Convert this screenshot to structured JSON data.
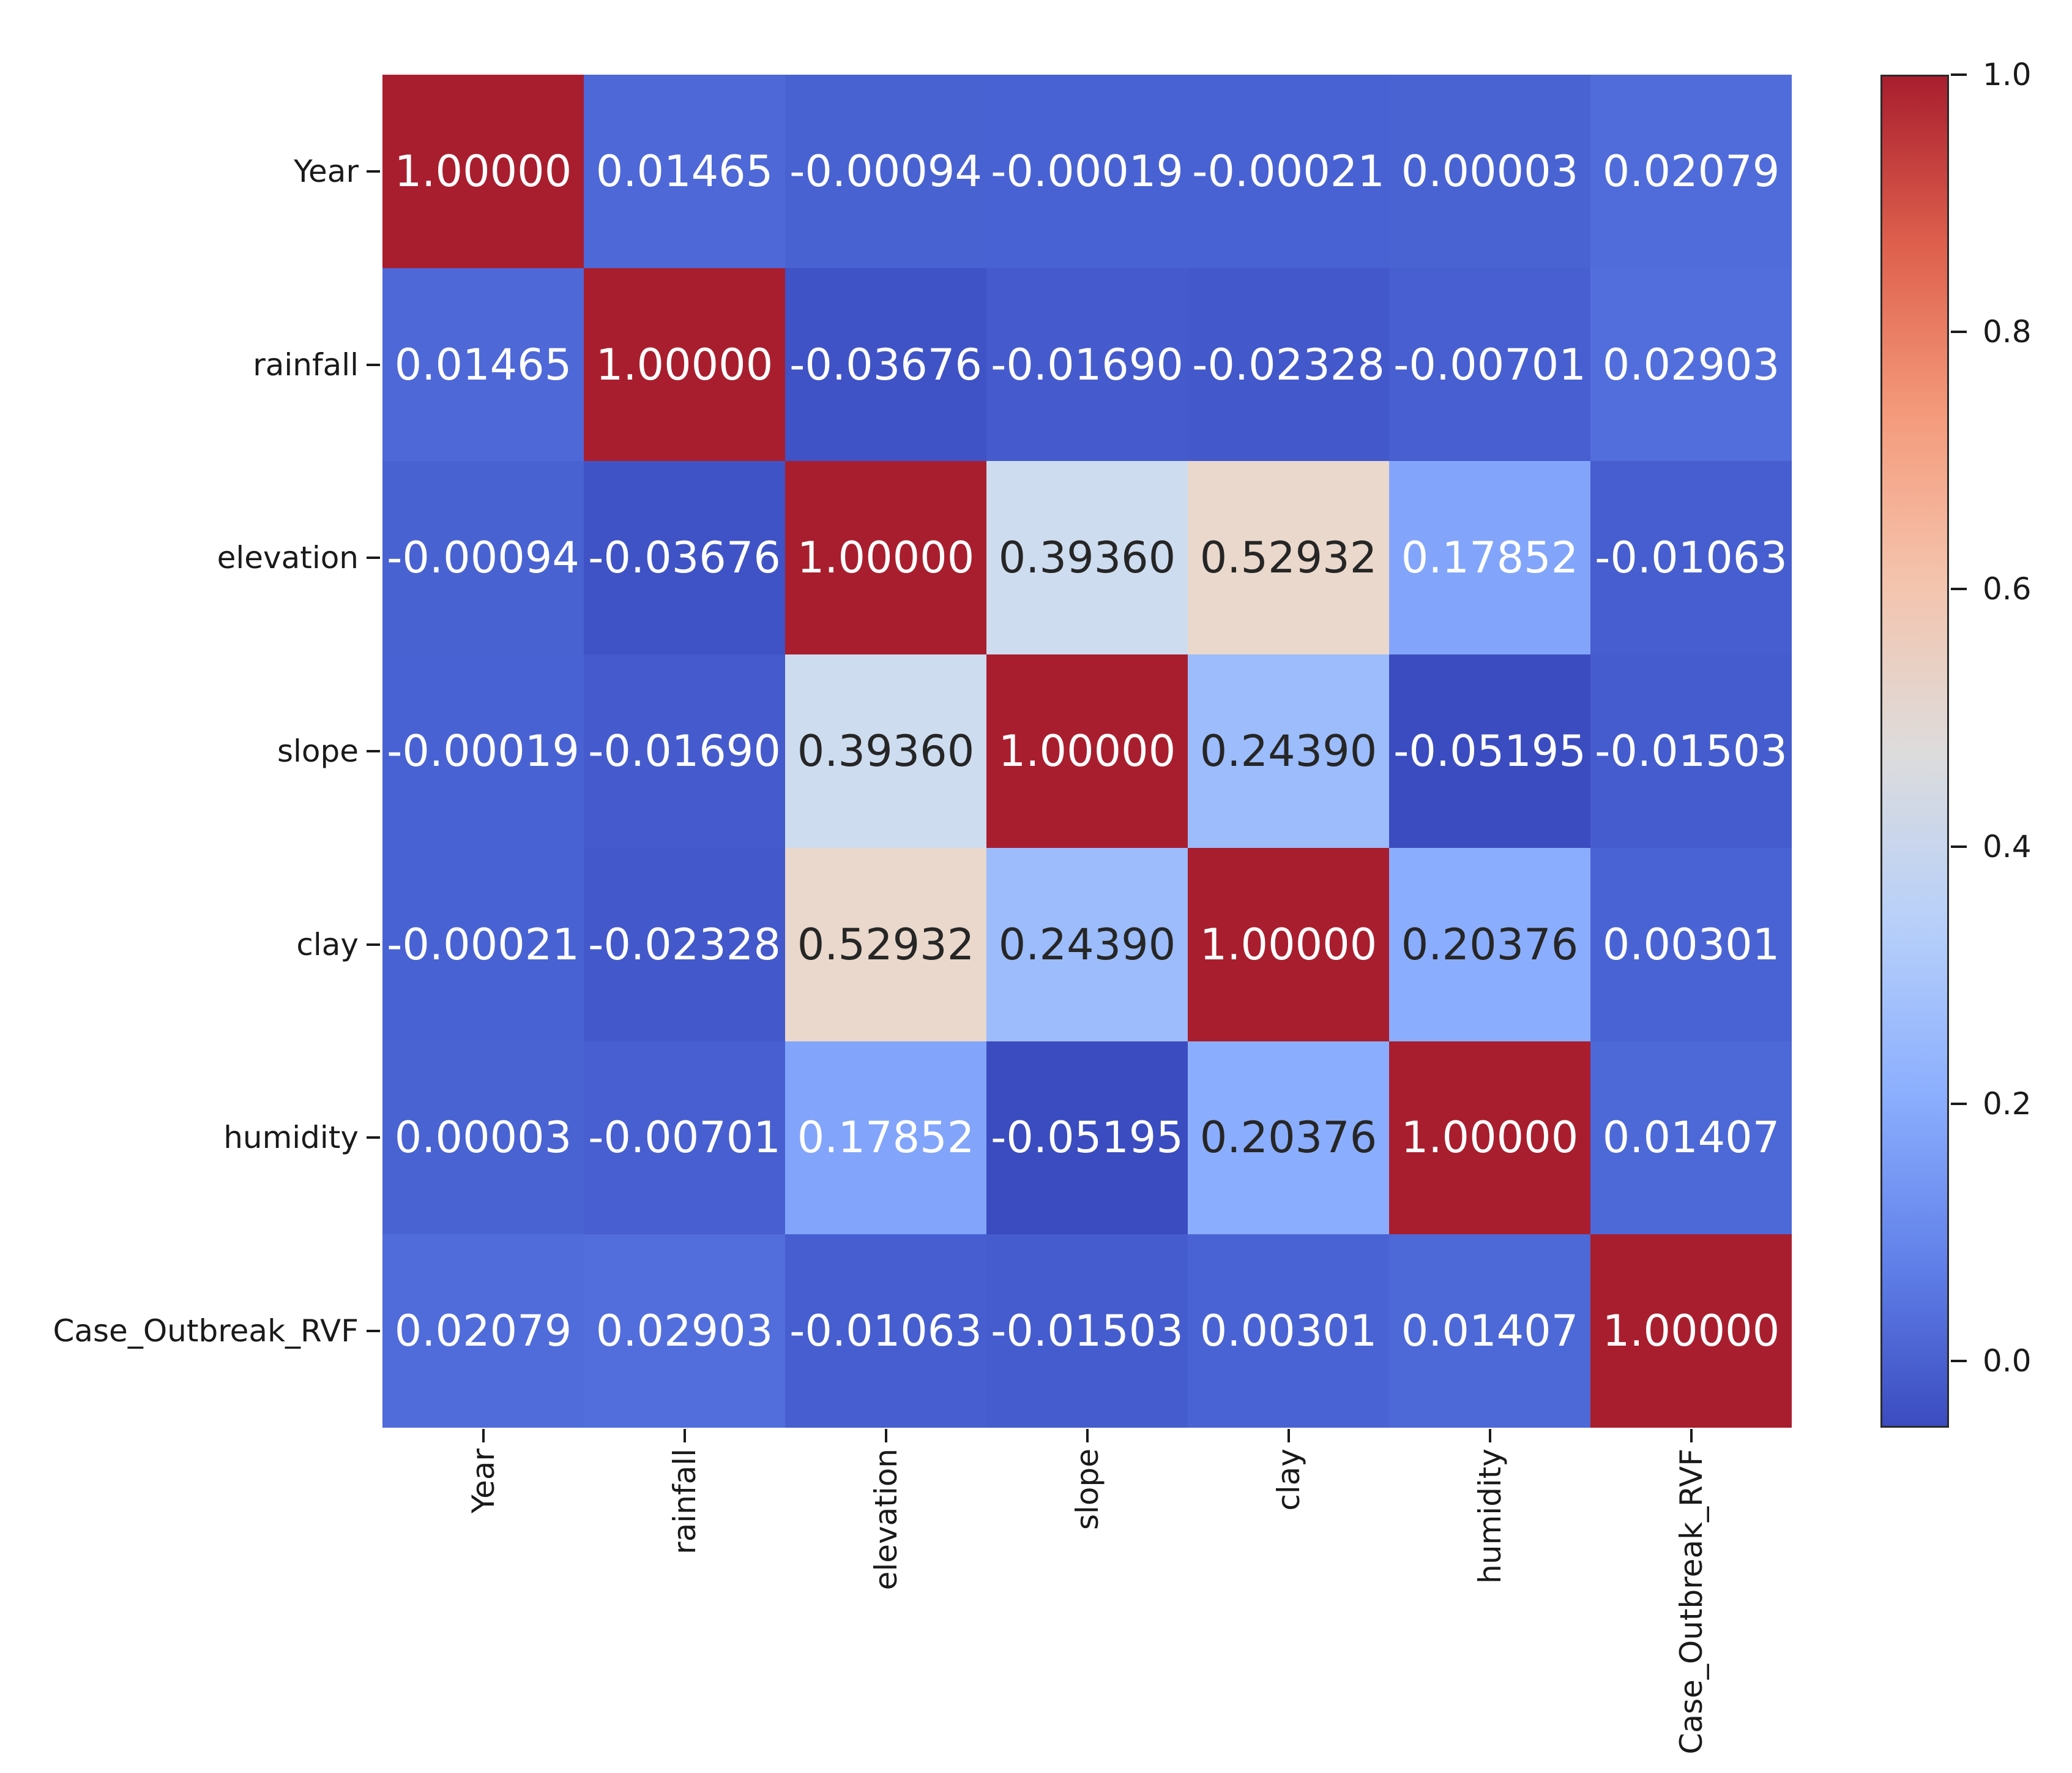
{
  "chart_data": {
    "type": "heatmap",
    "title": "",
    "xlabel": "",
    "ylabel": "",
    "labels": [
      "Year",
      "rainfall",
      "elevation",
      "slope",
      "clay",
      "humidity",
      "Case_Outbreak_RVF"
    ],
    "matrix": [
      [
        1.0,
        0.01465,
        -0.00094,
        -0.00019,
        -0.00021,
        3e-05,
        0.02079
      ],
      [
        0.01465,
        1.0,
        -0.03676,
        -0.0169,
        -0.02328,
        -0.00701,
        0.02903
      ],
      [
        -0.00094,
        -0.03676,
        1.0,
        0.3936,
        0.52932,
        0.17852,
        -0.01063
      ],
      [
        -0.00019,
        -0.0169,
        0.3936,
        1.0,
        0.2439,
        -0.05195,
        -0.01503
      ],
      [
        -0.00021,
        -0.02328,
        0.52932,
        0.2439,
        1.0,
        0.20376,
        0.00301
      ],
      [
        3e-05,
        -0.00701,
        0.17852,
        -0.05195,
        0.20376,
        1.0,
        0.01407
      ],
      [
        0.02079,
        0.02903,
        -0.01063,
        -0.01503,
        0.00301,
        0.01407,
        1.0
      ]
    ],
    "annotations": [
      [
        "1.00000",
        "0.01465",
        "-0.00094",
        "-0.00019",
        "-0.00021",
        "0.00003",
        "0.02079"
      ],
      [
        "0.01465",
        "1.00000",
        "-0.03676",
        "-0.01690",
        "-0.02328",
        "-0.00701",
        "0.02903"
      ],
      [
        "-0.00094",
        "-0.03676",
        "1.00000",
        "0.39360",
        "0.52932",
        "0.17852",
        "-0.01063"
      ],
      [
        "-0.00019",
        "-0.01690",
        "0.39360",
        "1.00000",
        "0.24390",
        "-0.05195",
        "-0.01503"
      ],
      [
        "-0.00021",
        "-0.02328",
        "0.52932",
        "0.24390",
        "1.00000",
        "0.20376",
        "0.00301"
      ],
      [
        "0.00003",
        "-0.00701",
        "0.17852",
        "-0.05195",
        "0.20376",
        "1.00000",
        "0.01407"
      ],
      [
        "0.02079",
        "0.02903",
        "-0.01063",
        "-0.01503",
        "0.00301",
        "0.01407",
        "1.00000"
      ]
    ],
    "cell_colors": [
      [
        "#A91E2E",
        "#4E68D8",
        "#4962D2",
        "#4962D3",
        "#4962D3",
        "#4963D3",
        "#506BDA"
      ],
      [
        "#4E68D8",
        "#A91E2E",
        "#3F53C6",
        "#455BCD",
        "#4358CB",
        "#475FD0",
        "#526EDC"
      ],
      [
        "#4962D2",
        "#3F53C6",
        "#A91E2E",
        "#CEDCF0",
        "#E9D8CB",
        "#82A5FB",
        "#465ECF"
      ],
      [
        "#4962D3",
        "#455BCD",
        "#CEDCF0",
        "#A91E2E",
        "#9CBCFC",
        "#3B4CC0",
        "#455CCE"
      ],
      [
        "#4962D3",
        "#4358CB",
        "#E9D8CB",
        "#9CBCFC",
        "#A91E2E",
        "#8BADFD",
        "#4A63D4"
      ],
      [
        "#4963D3",
        "#475FD0",
        "#82A5FB",
        "#3B4CC0",
        "#8BADFD",
        "#A91E2E",
        "#4D68D7"
      ],
      [
        "#506BDA",
        "#526EDC",
        "#465ECF",
        "#455CCE",
        "#4A63D4",
        "#4D68D7",
        "#A91E2E"
      ]
    ],
    "cell_text_colors": [
      [
        "#FFFFFF",
        "#FFFFFF",
        "#FFFFFF",
        "#FFFFFF",
        "#FFFFFF",
        "#FFFFFF",
        "#FFFFFF"
      ],
      [
        "#FFFFFF",
        "#FFFFFF",
        "#FFFFFF",
        "#FFFFFF",
        "#FFFFFF",
        "#FFFFFF",
        "#FFFFFF"
      ],
      [
        "#FFFFFF",
        "#FFFFFF",
        "#FFFFFF",
        "#262626",
        "#262626",
        "#FFFFFF",
        "#FFFFFF"
      ],
      [
        "#FFFFFF",
        "#FFFFFF",
        "#262626",
        "#FFFFFF",
        "#262626",
        "#FFFFFF",
        "#FFFFFF"
      ],
      [
        "#FFFFFF",
        "#FFFFFF",
        "#262626",
        "#262626",
        "#FFFFFF",
        "#262626",
        "#FFFFFF"
      ],
      [
        "#FFFFFF",
        "#FFFFFF",
        "#FFFFFF",
        "#FFFFFF",
        "#262626",
        "#FFFFFF",
        "#FFFFFF"
      ],
      [
        "#FFFFFF",
        "#FFFFFF",
        "#FFFFFF",
        "#FFFFFF",
        "#FFFFFF",
        "#FFFFFF",
        "#FFFFFF"
      ]
    ],
    "colormap": "coolwarm",
    "vmin": -0.05195,
    "vmax": 1.0,
    "colorbar_tick_labels": [
      "1.0",
      "0.8",
      "0.6",
      "0.4",
      "0.2",
      "0.0"
    ],
    "colorbar_tick_values": [
      1.0,
      0.8,
      0.6,
      0.4,
      0.2,
      0.0
    ],
    "colormap_stops_top_to_bottom": [
      "#A91E2E",
      "#DE604D",
      "#F49A7B",
      "#F4C4AD",
      "#DDDCDC",
      "#B8D0F9",
      "#8DB0FE",
      "#6282EA",
      "#3B4CC0"
    ],
    "grid": false,
    "legend_position": "colorbar-right"
  }
}
